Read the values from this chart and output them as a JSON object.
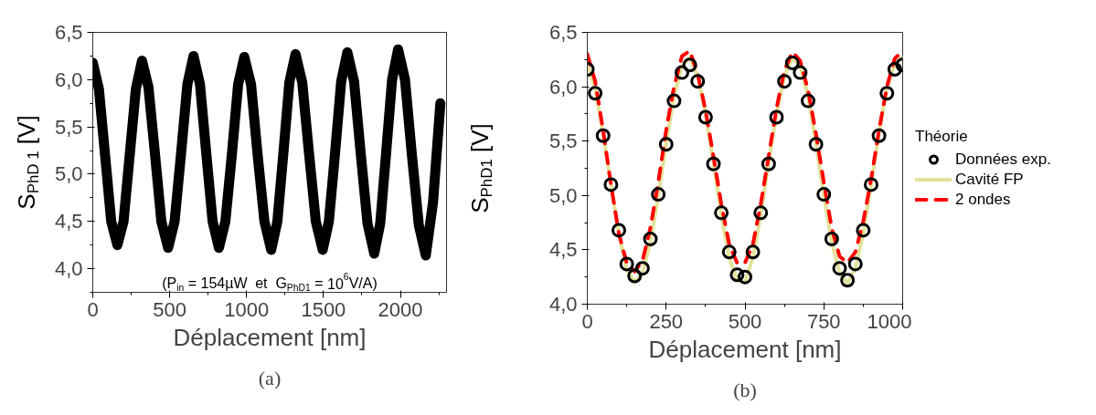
{
  "chart_data": [
    {
      "type": "line",
      "title": "(a)",
      "xlabel": "Déplacement [nm]",
      "ylabel": "S$_{PhD 1}$ [V]",
      "annotations": [
        "(P$_{in}$ = 154µW  et  G$_{PhD1}$ = 10$^{6}$V/A)"
      ],
      "xlim": [
        0,
        2300
      ],
      "ylim": [
        3.75,
        6.5
      ],
      "xticks": [
        0,
        500,
        1000,
        1500,
        2000
      ],
      "yticks": [
        {
          "value": 4.0,
          "label": "4,0"
        },
        {
          "value": 4.5,
          "label": "4,5"
        },
        {
          "value": 5.0,
          "label": "5,0"
        },
        {
          "value": 5.5,
          "label": "5,5"
        },
        {
          "value": 6.0,
          "label": "6,0"
        },
        {
          "value": 6.5,
          "label": "6,5"
        }
      ],
      "series": [
        {
          "color": "#000000",
          "x": [
            0,
            40,
            80,
            120,
            160,
            200,
            240,
            280,
            320,
            362,
            404,
            446,
            490,
            532,
            574,
            615,
            655,
            697,
            738,
            779,
            820,
            862,
            905,
            945,
            985,
            1029,
            1072,
            1116,
            1160,
            1200,
            1239,
            1278,
            1318,
            1362,
            1406,
            1450,
            1495,
            1535,
            1575,
            1615,
            1655,
            1699,
            1742,
            1786,
            1830,
            1869,
            1907,
            1946,
            1985,
            2030,
            2075,
            2120,
            2165,
            2212,
            2260
          ],
          "values": [
            6.18,
            5.9,
            5.2,
            4.5,
            4.25,
            4.5,
            5.2,
            5.9,
            6.2,
            5.92,
            5.22,
            4.5,
            4.22,
            4.5,
            5.22,
            5.95,
            6.25,
            5.95,
            5.22,
            4.5,
            4.22,
            4.5,
            5.22,
            5.95,
            6.24,
            5.95,
            5.2,
            4.5,
            4.2,
            4.5,
            5.22,
            5.97,
            6.27,
            5.97,
            5.22,
            4.5,
            4.2,
            4.5,
            5.22,
            5.98,
            6.29,
            5.98,
            5.22,
            4.48,
            4.16,
            4.48,
            5.22,
            6.0,
            6.32,
            6.0,
            5.2,
            4.46,
            4.14,
            4.7,
            5.75
          ]
        }
      ]
    },
    {
      "type": "line",
      "title": "(b)",
      "xlabel": "Déplacement [nm]",
      "ylabel": "S$_{PhD1}$ [V]",
      "legend_title": "Théorie",
      "legend": "right",
      "xlim": [
        0,
        1000
      ],
      "ylim": [
        4.0,
        6.5
      ],
      "xticks": [
        0,
        250,
        500,
        750,
        1000
      ],
      "yticks": [
        {
          "value": 4.0,
          "label": "4,0"
        },
        {
          "value": 4.5,
          "label": "4,5"
        },
        {
          "value": 5.0,
          "label": "5,0"
        },
        {
          "value": 5.5,
          "label": "5,5"
        },
        {
          "value": 6.0,
          "label": "6,0"
        },
        {
          "value": 6.5,
          "label": "6,5"
        }
      ],
      "x": [
        0,
        25,
        50,
        75,
        100,
        125,
        150,
        175,
        200,
        225,
        250,
        275,
        300,
        325,
        350,
        375,
        400,
        425,
        450,
        475,
        500,
        525,
        550,
        575,
        600,
        625,
        650,
        675,
        700,
        725,
        750,
        775,
        800,
        825,
        850,
        875,
        900,
        925,
        950,
        975,
        1000
      ],
      "series": [
        {
          "name": "Données exp.",
          "type": "scatter",
          "marker": "circle",
          "color": "#000000",
          "values": [
            6.16,
            5.94,
            5.55,
            5.1,
            4.68,
            4.37,
            4.26,
            4.33,
            4.6,
            5.01,
            5.47,
            5.87,
            6.13,
            6.2,
            6.05,
            5.72,
            5.29,
            4.84,
            4.48,
            4.27,
            4.25,
            4.48,
            4.84,
            5.29,
            5.72,
            6.05,
            6.22,
            6.13,
            5.87,
            5.47,
            5.01,
            4.6,
            4.33,
            4.22,
            4.37,
            4.68,
            5.1,
            5.55,
            5.94,
            6.16,
            6.2
          ]
        },
        {
          "name": "Cavité FP",
          "type": "line",
          "line_style": "solid",
          "color": "#e2e29a",
          "values": [
            6.22,
            5.98,
            5.57,
            5.1,
            4.65,
            4.32,
            4.2,
            4.29,
            4.57,
            5.0,
            5.48,
            5.91,
            6.19,
            6.27,
            6.1,
            5.75,
            5.3,
            4.82,
            4.43,
            4.22,
            4.2,
            4.43,
            4.82,
            5.3,
            5.75,
            6.1,
            6.27,
            6.19,
            5.91,
            5.48,
            5.0,
            4.57,
            4.29,
            4.19,
            4.33,
            4.65,
            5.1,
            5.57,
            5.98,
            6.22,
            6.27
          ]
        },
        {
          "name": "2 ondes",
          "type": "line",
          "line_style": "dashed",
          "color": "#ff0000",
          "values": [
            6.3,
            6.05,
            5.6,
            5.1,
            4.65,
            4.38,
            4.3,
            4.4,
            4.7,
            5.12,
            5.6,
            6.0,
            6.28,
            6.33,
            6.12,
            5.78,
            5.36,
            4.92,
            4.55,
            4.38,
            4.38,
            4.55,
            4.92,
            5.36,
            5.8,
            6.15,
            6.32,
            6.24,
            5.97,
            5.57,
            5.12,
            4.7,
            4.44,
            4.38,
            4.48,
            4.76,
            5.15,
            5.6,
            6.0,
            6.26,
            6.33
          ]
        }
      ]
    }
  ]
}
